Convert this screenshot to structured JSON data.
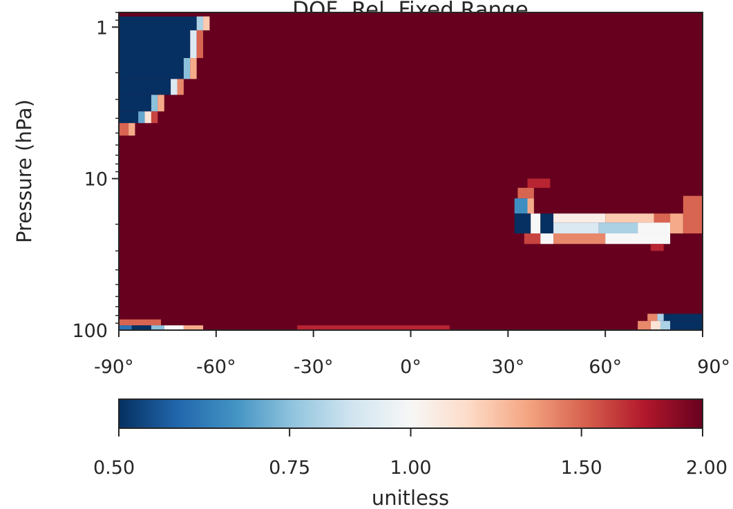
{
  "chart_data": {
    "type": "heatmap",
    "title": "DOF, Rel, Fixed Range",
    "xlabel": "",
    "ylabel": "Pressure (hPa)",
    "x_range": [
      -90,
      90
    ],
    "x_ticks": [
      -90,
      -60,
      -30,
      0,
      30,
      60,
      90
    ],
    "x_tick_labels": [
      "-90°",
      "-60°",
      "-30°",
      "0°",
      "30°",
      "60°",
      "90°"
    ],
    "y_scale": "log",
    "y_inverted": true,
    "y_range": [
      100,
      0.8
    ],
    "y_ticks": [
      1,
      10,
      100
    ],
    "y_tick_labels": [
      "1",
      "10",
      "100"
    ],
    "grid": false,
    "colorbar": {
      "label": "unitless",
      "orientation": "horizontal",
      "scale": "log",
      "range": [
        0.5,
        2.0
      ],
      "ticks": [
        0.5,
        0.75,
        1.0,
        1.5,
        2.0
      ],
      "tick_labels": [
        "0.50",
        "0.75",
        "1.00",
        "1.50",
        "2.00"
      ],
      "colormap": "RdBu_r"
    },
    "background_value": 2.0,
    "regions": [
      {
        "lat": [
          -90,
          -66
        ],
        "p": [
          0.85,
          1.05
        ],
        "value": 0.5
      },
      {
        "lat": [
          -66,
          -64
        ],
        "p": [
          0.85,
          1.05
        ],
        "value": 0.8
      },
      {
        "lat": [
          -64,
          -62
        ],
        "p": [
          0.85,
          1.05
        ],
        "value": 1.2
      },
      {
        "lat": [
          -90,
          -68
        ],
        "p": [
          1.05,
          1.6
        ],
        "value": 0.5
      },
      {
        "lat": [
          -68,
          -66
        ],
        "p": [
          1.05,
          1.6
        ],
        "value": 0.9
      },
      {
        "lat": [
          -66,
          -64
        ],
        "p": [
          1.05,
          1.6
        ],
        "value": 1.5
      },
      {
        "lat": [
          -90,
          -70
        ],
        "p": [
          1.6,
          2.2
        ],
        "value": 0.5
      },
      {
        "lat": [
          -70,
          -68
        ],
        "p": [
          1.6,
          2.2
        ],
        "value": 0.75
      },
      {
        "lat": [
          -68,
          -66
        ],
        "p": [
          1.6,
          2.2
        ],
        "value": 1.3
      },
      {
        "lat": [
          -90,
          -74
        ],
        "p": [
          2.2,
          2.8
        ],
        "value": 0.5
      },
      {
        "lat": [
          -74,
          -72
        ],
        "p": [
          2.2,
          2.8
        ],
        "value": 0.9
      },
      {
        "lat": [
          -72,
          -70
        ],
        "p": [
          2.2,
          2.8
        ],
        "value": 1.4
      },
      {
        "lat": [
          -90,
          -80
        ],
        "p": [
          2.8,
          3.6
        ],
        "value": 0.5
      },
      {
        "lat": [
          -80,
          -78
        ],
        "p": [
          2.8,
          3.6
        ],
        "value": 0.75
      },
      {
        "lat": [
          -78,
          -76
        ],
        "p": [
          2.8,
          3.6
        ],
        "value": 1.3
      },
      {
        "lat": [
          -90,
          -84
        ],
        "p": [
          3.6,
          4.3
        ],
        "value": 0.5
      },
      {
        "lat": [
          -84,
          -82
        ],
        "p": [
          3.6,
          4.3
        ],
        "value": 0.7
      },
      {
        "lat": [
          -82,
          -80
        ],
        "p": [
          3.6,
          4.3
        ],
        "value": 1.1
      },
      {
        "lat": [
          -80,
          -78
        ],
        "p": [
          3.6,
          4.3
        ],
        "value": 1.6
      },
      {
        "lat": [
          -90,
          -87
        ],
        "p": [
          4.3,
          5.2
        ],
        "value": 1.5
      },
      {
        "lat": [
          -87,
          -85
        ],
        "p": [
          4.3,
          5.2
        ],
        "value": 1.3
      },
      {
        "lat": [
          -90,
          -77
        ],
        "p": [
          85,
          93
        ],
        "value": 1.5
      },
      {
        "lat": [
          -90,
          -86
        ],
        "p": [
          93,
          100
        ],
        "value": 0.6
      },
      {
        "lat": [
          -86,
          -80
        ],
        "p": [
          93,
          100
        ],
        "value": 0.5
      },
      {
        "lat": [
          -80,
          -76
        ],
        "p": [
          93,
          100
        ],
        "value": 0.75
      },
      {
        "lat": [
          -76,
          -70
        ],
        "p": [
          93,
          100
        ],
        "value": 1.0
      },
      {
        "lat": [
          -70,
          -64
        ],
        "p": [
          93,
          100
        ],
        "value": 1.3
      },
      {
        "lat": [
          -35,
          12
        ],
        "p": [
          93,
          100
        ],
        "value": 1.7
      },
      {
        "lat": [
          33,
          38
        ],
        "p": [
          11.5,
          13.5
        ],
        "value": 1.5
      },
      {
        "lat": [
          36,
          43
        ],
        "p": [
          10,
          11.5
        ],
        "value": 1.7
      },
      {
        "lat": [
          32,
          36
        ],
        "p": [
          13.5,
          17
        ],
        "value": 0.65
      },
      {
        "lat": [
          36,
          38
        ],
        "p": [
          13.5,
          17
        ],
        "value": 1.3
      },
      {
        "lat": [
          32,
          37
        ],
        "p": [
          17,
          23
        ],
        "value": 0.5
      },
      {
        "lat": [
          37,
          40
        ],
        "p": [
          17,
          23
        ],
        "value": 1.0
      },
      {
        "lat": [
          40,
          44
        ],
        "p": [
          17,
          23
        ],
        "value": 0.5
      },
      {
        "lat": [
          44,
          60
        ],
        "p": [
          17,
          19.5
        ],
        "value": 1.05
      },
      {
        "lat": [
          60,
          75
        ],
        "p": [
          17,
          19.5
        ],
        "value": 1.2
      },
      {
        "lat": [
          75,
          80
        ],
        "p": [
          17,
          19.5
        ],
        "value": 1.5
      },
      {
        "lat": [
          44,
          58
        ],
        "p": [
          19.5,
          23
        ],
        "value": 0.9
      },
      {
        "lat": [
          58,
          70
        ],
        "p": [
          19.5,
          23
        ],
        "value": 0.8
      },
      {
        "lat": [
          70,
          80
        ],
        "p": [
          19.5,
          23
        ],
        "value": 1.0
      },
      {
        "lat": [
          80,
          84
        ],
        "p": [
          17,
          23
        ],
        "value": 1.3
      },
      {
        "lat": [
          84,
          90
        ],
        "p": [
          13,
          23
        ],
        "value": 1.5
      },
      {
        "lat": [
          35,
          40
        ],
        "p": [
          23,
          27
        ],
        "value": 1.6
      },
      {
        "lat": [
          40,
          44
        ],
        "p": [
          23,
          27
        ],
        "value": 1.0
      },
      {
        "lat": [
          44,
          60
        ],
        "p": [
          23,
          27
        ],
        "value": 1.4
      },
      {
        "lat": [
          60,
          80
        ],
        "p": [
          23,
          27
        ],
        "value": 1.0
      },
      {
        "lat": [
          74,
          78
        ],
        "p": [
          27,
          30
        ],
        "value": 1.7
      },
      {
        "lat": [
          78,
          90
        ],
        "p": [
          78,
          87
        ],
        "value": 0.5
      },
      {
        "lat": [
          76,
          78
        ],
        "p": [
          78,
          87
        ],
        "value": 0.8
      },
      {
        "lat": [
          73,
          76
        ],
        "p": [
          78,
          87
        ],
        "value": 1.4
      },
      {
        "lat": [
          80,
          90
        ],
        "p": [
          87,
          100
        ],
        "value": 0.5
      },
      {
        "lat": [
          77,
          80
        ],
        "p": [
          87,
          100
        ],
        "value": 0.8
      },
      {
        "lat": [
          74,
          77
        ],
        "p": [
          87,
          100
        ],
        "value": 1.1
      },
      {
        "lat": [
          70,
          74
        ],
        "p": [
          87,
          100
        ],
        "value": 1.4
      }
    ]
  }
}
